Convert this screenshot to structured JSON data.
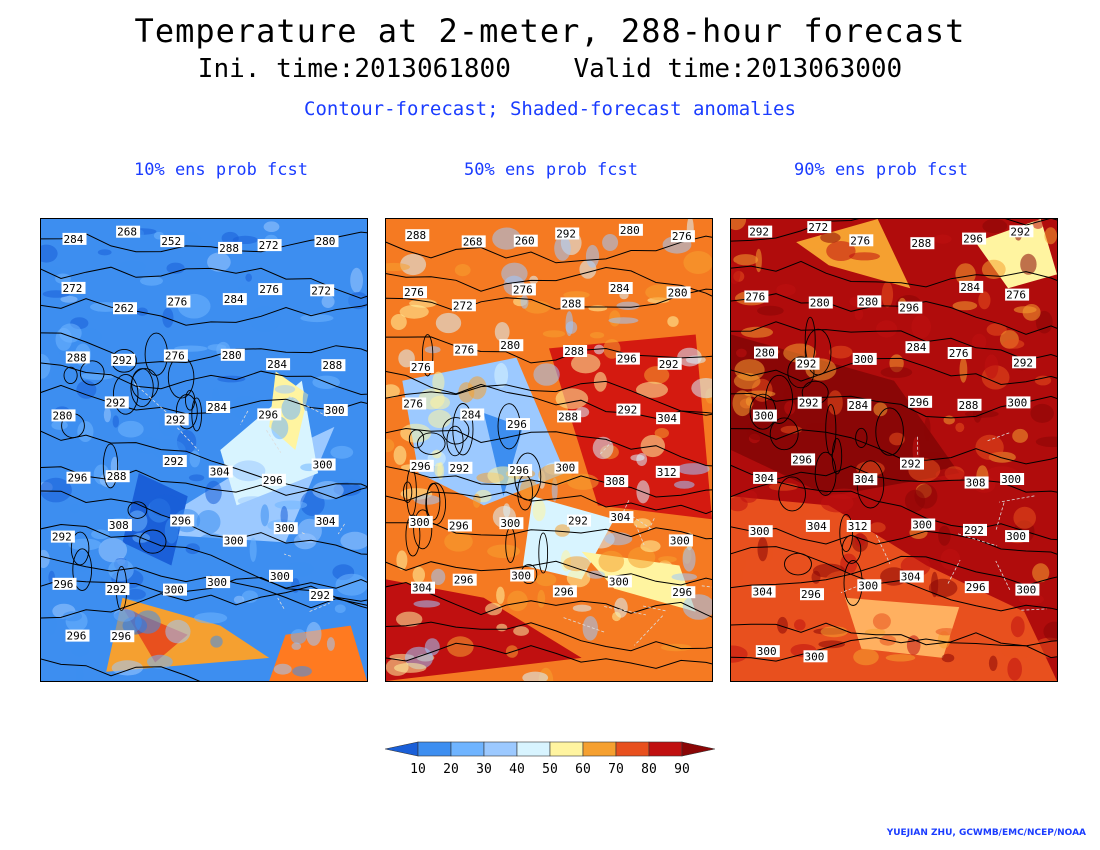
{
  "header": {
    "title": "Temperature at 2-meter, 288-hour forecast",
    "subtitle": "Ini. time:2013061800    Valid time:2013063000",
    "description": "Contour-forecast; Shaded-forecast anomalies"
  },
  "panels": [
    {
      "title": "10% ens prob fcst",
      "base_color": "#3d8ef0",
      "blobs": [
        {
          "c": "#9cc9ff",
          "pts": [
            [
              0.6,
              0.55
            ],
            [
              0.9,
              0.45
            ],
            [
              0.75,
              0.7
            ],
            [
              0.3,
              0.68
            ]
          ]
        },
        {
          "c": "#d8f4ff",
          "pts": [
            [
              0.55,
              0.5
            ],
            [
              0.8,
              0.35
            ],
            [
              0.85,
              0.55
            ],
            [
              0.6,
              0.62
            ]
          ]
        },
        {
          "c": "#fff4a0",
          "pts": [
            [
              0.72,
              0.33
            ],
            [
              0.82,
              0.38
            ],
            [
              0.78,
              0.5
            ],
            [
              0.7,
              0.45
            ]
          ]
        },
        {
          "c": "#f5a030",
          "pts": [
            [
              0.25,
              0.82
            ],
            [
              0.55,
              0.88
            ],
            [
              0.7,
              0.95
            ],
            [
              0.2,
              0.98
            ]
          ]
        },
        {
          "c": "#e8501e",
          "pts": [
            [
              0.25,
              0.84
            ],
            [
              0.45,
              0.9
            ],
            [
              0.35,
              0.96
            ]
          ]
        },
        {
          "c": "#ff7a20",
          "pts": [
            [
              0.75,
              0.9
            ],
            [
              0.95,
              0.88
            ],
            [
              1.0,
              1.0
            ],
            [
              0.7,
              1.0
            ]
          ]
        },
        {
          "c": "#1a5fd8",
          "pts": [
            [
              0.3,
              0.55
            ],
            [
              0.45,
              0.6
            ],
            [
              0.4,
              0.75
            ],
            [
              0.25,
              0.7
            ]
          ]
        }
      ],
      "labels": [
        "284",
        "268",
        "252",
        "288",
        "272",
        "280",
        "272",
        "262",
        "276",
        "284",
        "276",
        "272",
        "288",
        "292",
        "276",
        "280",
        "284",
        "288",
        "280",
        "292",
        "292",
        "284",
        "296",
        "300",
        "296",
        "288",
        "292",
        "304",
        "296",
        "300",
        "292",
        "308",
        "296",
        "300",
        "300",
        "304",
        "296",
        "292",
        "300",
        "300",
        "300",
        "292",
        "296",
        "296"
      ]
    },
    {
      "title": "50% ens prob fcst",
      "base_color": "#f57a22",
      "blobs": [
        {
          "c": "#d41a10",
          "pts": [
            [
              0.5,
              0.28
            ],
            [
              0.95,
              0.25
            ],
            [
              1.0,
              0.65
            ],
            [
              0.65,
              0.62
            ]
          ]
        },
        {
          "c": "#9cc9ff",
          "pts": [
            [
              0.05,
              0.35
            ],
            [
              0.4,
              0.3
            ],
            [
              0.55,
              0.55
            ],
            [
              0.3,
              0.62
            ],
            [
              0.1,
              0.55
            ]
          ]
        },
        {
          "c": "#3d8ef0",
          "pts": [
            [
              0.3,
              0.42
            ],
            [
              0.42,
              0.45
            ],
            [
              0.36,
              0.6
            ]
          ]
        },
        {
          "c": "#d8f4ff",
          "pts": [
            [
              0.45,
              0.6
            ],
            [
              0.7,
              0.65
            ],
            [
              0.6,
              0.78
            ],
            [
              0.42,
              0.75
            ]
          ]
        },
        {
          "c": "#c01010",
          "pts": [
            [
              0.0,
              0.78
            ],
            [
              0.3,
              0.82
            ],
            [
              0.6,
              0.95
            ],
            [
              0.0,
              1.0
            ]
          ]
        },
        {
          "c": "#fff4a0",
          "pts": [
            [
              0.6,
              0.72
            ],
            [
              0.9,
              0.75
            ],
            [
              0.95,
              0.85
            ],
            [
              0.7,
              0.8
            ]
          ]
        }
      ],
      "labels": [
        "288",
        "268",
        "260",
        "292",
        "280",
        "276",
        "276",
        "272",
        "276",
        "288",
        "284",
        "280",
        "276",
        "276",
        "280",
        "288",
        "296",
        "292",
        "276",
        "284",
        "296",
        "288",
        "292",
        "304",
        "296",
        "292",
        "296",
        "300",
        "308",
        "312",
        "300",
        "296",
        "300",
        "292",
        "304",
        "300",
        "304",
        "296",
        "300",
        "296",
        "300",
        "296"
      ]
    },
    {
      "title": "90% ens prob fcst",
      "base_color": "#b00c0c",
      "blobs": [
        {
          "c": "#e8501e",
          "pts": [
            [
              0.0,
              0.6
            ],
            [
              0.3,
              0.62
            ],
            [
              0.6,
              0.75
            ],
            [
              0.9,
              0.85
            ],
            [
              1.0,
              1.0
            ],
            [
              0.0,
              1.0
            ]
          ]
        },
        {
          "c": "#fff4a0",
          "pts": [
            [
              0.75,
              0.05
            ],
            [
              0.95,
              0.0
            ],
            [
              1.0,
              0.12
            ],
            [
              0.85,
              0.15
            ]
          ]
        },
        {
          "c": "#f5a030",
          "pts": [
            [
              0.2,
              0.05
            ],
            [
              0.45,
              0.0
            ],
            [
              0.55,
              0.15
            ],
            [
              0.3,
              0.1
            ]
          ]
        },
        {
          "c": "#8a0606",
          "pts": [
            [
              0.0,
              0.25
            ],
            [
              0.5,
              0.35
            ],
            [
              0.7,
              0.55
            ],
            [
              0.3,
              0.6
            ],
            [
              0.0,
              0.5
            ]
          ]
        },
        {
          "c": "#ffb060",
          "pts": [
            [
              0.35,
              0.82
            ],
            [
              0.7,
              0.84
            ],
            [
              0.65,
              0.95
            ],
            [
              0.4,
              0.93
            ]
          ]
        }
      ],
      "labels": [
        "292",
        "272",
        "276",
        "288",
        "296",
        "292",
        "276",
        "280",
        "280",
        "296",
        "284",
        "276",
        "280",
        "292",
        "300",
        "284",
        "276",
        "292",
        "300",
        "292",
        "284",
        "296",
        "288",
        "300",
        "304",
        "296",
        "304",
        "292",
        "308",
        "300",
        "300",
        "304",
        "312",
        "300",
        "292",
        "300",
        "304",
        "296",
        "300",
        "304",
        "296",
        "300",
        "300",
        "300"
      ]
    }
  ],
  "colorbar": {
    "ticks": [
      "10",
      "20",
      "30",
      "40",
      "50",
      "60",
      "70",
      "80",
      "90"
    ],
    "colors": [
      "#1a5fd8",
      "#3d8ef0",
      "#6fb4ff",
      "#9cc9ff",
      "#d8f4ff",
      "#fff4a0",
      "#f5a030",
      "#e8501e",
      "#c01010",
      "#8a0606"
    ]
  },
  "credit": "YUEJIAN ZHU, GCWMB/EMC/NCEP/NOAA"
}
